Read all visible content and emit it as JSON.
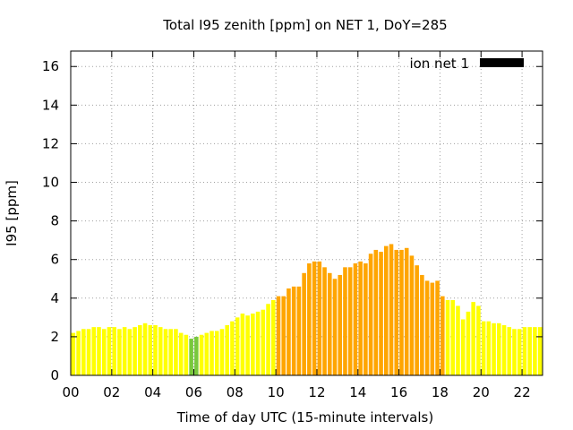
{
  "chart_data": {
    "type": "bar",
    "title": "Total I95 zenith [ppm] on NET 1, DoY=285",
    "xlabel": "Time of day UTC (15-minute intervals)",
    "ylabel": "I95 [ppm]",
    "xlim": [
      0,
      23
    ],
    "ylim": [
      0,
      16.8
    ],
    "xticks": [
      "00",
      "02",
      "04",
      "06",
      "08",
      "10",
      "12",
      "14",
      "16",
      "18",
      "20",
      "22"
    ],
    "xtick_values": [
      0,
      2,
      4,
      6,
      8,
      10,
      12,
      14,
      16,
      18,
      20,
      22
    ],
    "yticks": [
      0,
      2,
      4,
      6,
      8,
      10,
      12,
      14,
      16
    ],
    "grid": true,
    "legend": {
      "label": "ion net 1",
      "position": "top-right",
      "swatch_color": "#000000"
    },
    "interval_hours": 0.25,
    "bar_colors": {
      "green": "#78c83c",
      "yellow": "#ffff00",
      "orange": "#ffa500"
    },
    "series": [
      {
        "values": [
          2.2,
          2.3,
          2.4,
          2.4,
          2.5,
          2.5,
          2.4,
          2.5,
          2.5,
          2.4,
          2.5,
          2.4,
          2.5,
          2.6,
          2.7,
          2.6,
          2.6,
          2.5,
          2.4,
          2.4,
          2.4,
          2.2,
          2.1,
          1.9,
          2.0,
          2.1,
          2.2,
          2.3,
          2.3,
          2.4,
          2.6,
          2.8,
          3.0,
          3.2,
          3.1,
          3.2,
          3.3,
          3.4,
          3.7,
          3.9,
          4.1,
          4.1,
          4.5,
          4.6,
          4.6,
          5.3,
          5.8,
          5.9,
          5.9,
          5.6,
          5.3,
          5.0,
          5.2,
          5.6,
          5.6,
          5.8,
          5.9,
          5.8,
          6.3,
          6.5,
          6.4,
          6.7,
          6.8,
          6.5,
          6.5,
          6.6,
          6.2,
          5.7,
          5.2,
          4.9,
          4.8,
          4.9,
          4.1,
          3.9,
          3.9,
          3.6,
          2.9,
          3.3,
          3.8,
          3.6,
          2.8,
          2.8,
          2.7,
          2.7,
          2.6,
          2.5,
          2.4,
          2.4,
          2.5,
          2.5,
          2.5,
          2.5
        ],
        "level": [
          "yellow",
          "yellow",
          "yellow",
          "yellow",
          "yellow",
          "yellow",
          "yellow",
          "yellow",
          "yellow",
          "yellow",
          "yellow",
          "yellow",
          "yellow",
          "yellow",
          "yellow",
          "yellow",
          "yellow",
          "yellow",
          "yellow",
          "yellow",
          "yellow",
          "yellow",
          "yellow",
          "green",
          "green",
          "yellow",
          "yellow",
          "yellow",
          "yellow",
          "yellow",
          "yellow",
          "yellow",
          "yellow",
          "yellow",
          "yellow",
          "yellow",
          "yellow",
          "yellow",
          "yellow",
          "yellow",
          "orange",
          "orange",
          "orange",
          "orange",
          "orange",
          "orange",
          "orange",
          "orange",
          "orange",
          "orange",
          "orange",
          "orange",
          "orange",
          "orange",
          "orange",
          "orange",
          "orange",
          "orange",
          "orange",
          "orange",
          "orange",
          "orange",
          "orange",
          "orange",
          "orange",
          "orange",
          "orange",
          "orange",
          "orange",
          "orange",
          "orange",
          "orange",
          "orange",
          "yellow",
          "yellow",
          "yellow",
          "yellow",
          "yellow",
          "yellow",
          "yellow",
          "yellow",
          "yellow",
          "yellow",
          "yellow",
          "yellow",
          "yellow",
          "yellow",
          "yellow",
          "yellow",
          "yellow",
          "yellow",
          "yellow"
        ]
      }
    ]
  }
}
